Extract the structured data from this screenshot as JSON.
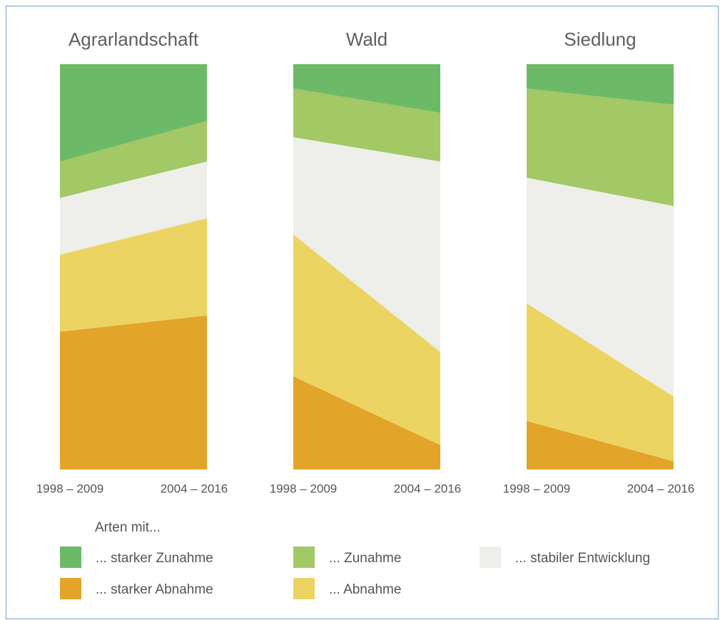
{
  "chart_data": {
    "type": "area",
    "x": [
      "1998 – 2009",
      "2004 – 2016"
    ],
    "legend_title": "Arten mit...",
    "series": [
      {
        "name": "... starker Zunahme",
        "color": "#6cba67"
      },
      {
        "name": "... Zunahme",
        "color": "#a3c866"
      },
      {
        "name": "... stabiler Entwicklung",
        "color": "#eeeeea"
      },
      {
        "name": "... Abnahme",
        "color": "#ecd462"
      },
      {
        "name": "... starker Abnahme",
        "color": "#e3a42a"
      }
    ],
    "panels": [
      {
        "title": "Agrarlandschaft",
        "values": [
          [
            24,
            14
          ],
          [
            9,
            10
          ],
          [
            14,
            14
          ],
          [
            19,
            24
          ],
          [
            34,
            38
          ]
        ]
      },
      {
        "title": "Wald",
        "values": [
          [
            6,
            12
          ],
          [
            12,
            12
          ],
          [
            24,
            47
          ],
          [
            35,
            23
          ],
          [
            23,
            6
          ]
        ]
      },
      {
        "title": "Siedlung",
        "values": [
          [
            6,
            10
          ],
          [
            22,
            25
          ],
          [
            31,
            47
          ],
          [
            29,
            16
          ],
          [
            12,
            2
          ]
        ]
      }
    ]
  }
}
